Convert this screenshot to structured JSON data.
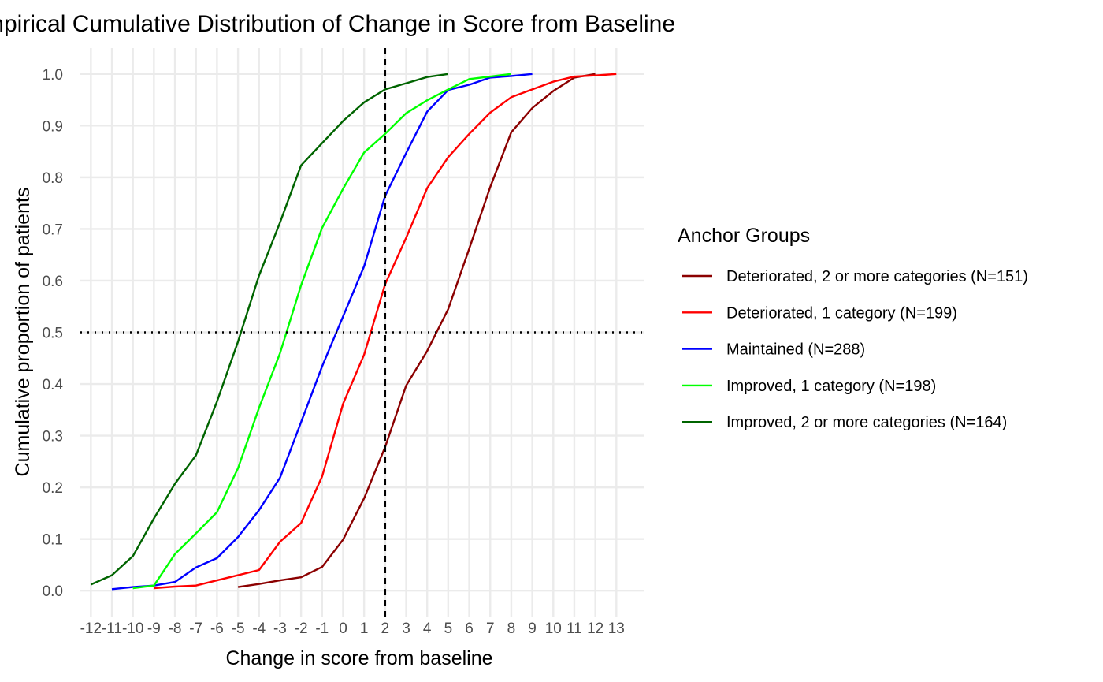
{
  "chart_data": {
    "type": "line",
    "title": "Empirical Cumulative Distribution of Change in Score from Baseline",
    "xlabel": "Change in score from baseline",
    "ylabel": "Cumulative proportion of patients",
    "xlim": [
      -12.5,
      14.3
    ],
    "ylim": [
      -0.05,
      1.05
    ],
    "x_ticks": [
      -12,
      -11,
      -10,
      -9,
      -8,
      -7,
      -6,
      -5,
      -4,
      -3,
      -2,
      -1,
      0,
      1,
      2,
      3,
      4,
      5,
      6,
      7,
      8,
      9,
      10,
      11,
      12,
      13
    ],
    "y_ticks": [
      0.0,
      0.1,
      0.2,
      0.3,
      0.4,
      0.5,
      0.6,
      0.7,
      0.8,
      0.9,
      1.0
    ],
    "y_tick_labels": [
      "0.0",
      "0.1",
      "0.2",
      "0.3",
      "0.4",
      "0.5",
      "0.6",
      "0.7",
      "0.8",
      "0.9",
      "1.0"
    ],
    "grid": true,
    "reference_lines": {
      "vertical_x": 2,
      "horizontal_y": 0.5
    },
    "legend": {
      "title": "Anchor Groups",
      "position": "right"
    },
    "series": [
      {
        "name": "Deteriorated, 2 or more categories (N=151)",
        "color": "#8b0000",
        "x": [
          -5,
          -4,
          -3,
          -2,
          -1,
          0,
          1,
          2,
          3,
          4,
          5,
          6,
          7,
          8,
          9,
          10,
          11,
          12
        ],
        "y": [
          0.007,
          0.013,
          0.02,
          0.026,
          0.046,
          0.099,
          0.179,
          0.278,
          0.397,
          0.464,
          0.545,
          0.662,
          0.781,
          0.887,
          0.934,
          0.967,
          0.993,
          1.0
        ]
      },
      {
        "name": "Deteriorated, 1 category (N=199)",
        "color": "#ff0000",
        "x": [
          -9,
          -8,
          -7,
          -6,
          -5,
          -4,
          -3,
          -2,
          -1,
          0,
          1,
          2,
          3,
          4,
          5,
          6,
          7,
          8,
          9,
          10,
          11,
          12,
          13
        ],
        "y": [
          0.005,
          0.008,
          0.01,
          0.02,
          0.03,
          0.04,
          0.095,
          0.131,
          0.221,
          0.362,
          0.457,
          0.593,
          0.683,
          0.779,
          0.839,
          0.884,
          0.925,
          0.955,
          0.97,
          0.985,
          0.995,
          0.997,
          1.0
        ]
      },
      {
        "name": "Maintained (N=288)",
        "color": "#0000ff",
        "x": [
          -11,
          -10,
          -9,
          -8,
          -7,
          -6,
          -5,
          -4,
          -3,
          -2,
          -1,
          0,
          1,
          2,
          3,
          4,
          5,
          6,
          7,
          8,
          9
        ],
        "y": [
          0.003,
          0.007,
          0.01,
          0.017,
          0.045,
          0.063,
          0.104,
          0.156,
          0.219,
          0.326,
          0.434,
          0.531,
          0.628,
          0.764,
          0.847,
          0.927,
          0.969,
          0.979,
          0.993,
          0.996,
          1.0
        ]
      },
      {
        "name": "Improved, 1 category (N=198)",
        "color": "#00ff00",
        "x": [
          -10,
          -9,
          -8,
          -7,
          -6,
          -5,
          -4,
          -3,
          -2,
          -1,
          0,
          1,
          2,
          3,
          4,
          5,
          6,
          7,
          8
        ],
        "y": [
          0.005,
          0.01,
          0.071,
          0.111,
          0.152,
          0.237,
          0.354,
          0.46,
          0.591,
          0.702,
          0.778,
          0.848,
          0.884,
          0.924,
          0.949,
          0.97,
          0.99,
          0.995,
          1.0
        ]
      },
      {
        "name": "Improved, 2 or more categories (N=164)",
        "color": "#006400",
        "x": [
          -12,
          -11,
          -10,
          -9,
          -8,
          -7,
          -6,
          -5,
          -4,
          -3,
          -2,
          -1,
          0,
          1,
          2,
          3,
          4,
          5
        ],
        "y": [
          0.012,
          0.03,
          0.067,
          0.14,
          0.207,
          0.262,
          0.366,
          0.482,
          0.61,
          0.713,
          0.823,
          0.866,
          0.909,
          0.945,
          0.97,
          0.982,
          0.994,
          1.0
        ]
      }
    ]
  }
}
